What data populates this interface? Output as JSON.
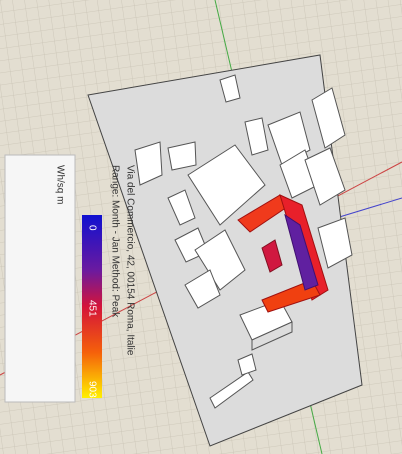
{
  "legend": {
    "unit": "Wh/sq m",
    "range": "Range: Month - Jan   Method: Peak",
    "location": "Via del Commercio, 42, 00154 Roma, Italie",
    "labels": [
      0,
      451,
      903
    ]
  }
}
